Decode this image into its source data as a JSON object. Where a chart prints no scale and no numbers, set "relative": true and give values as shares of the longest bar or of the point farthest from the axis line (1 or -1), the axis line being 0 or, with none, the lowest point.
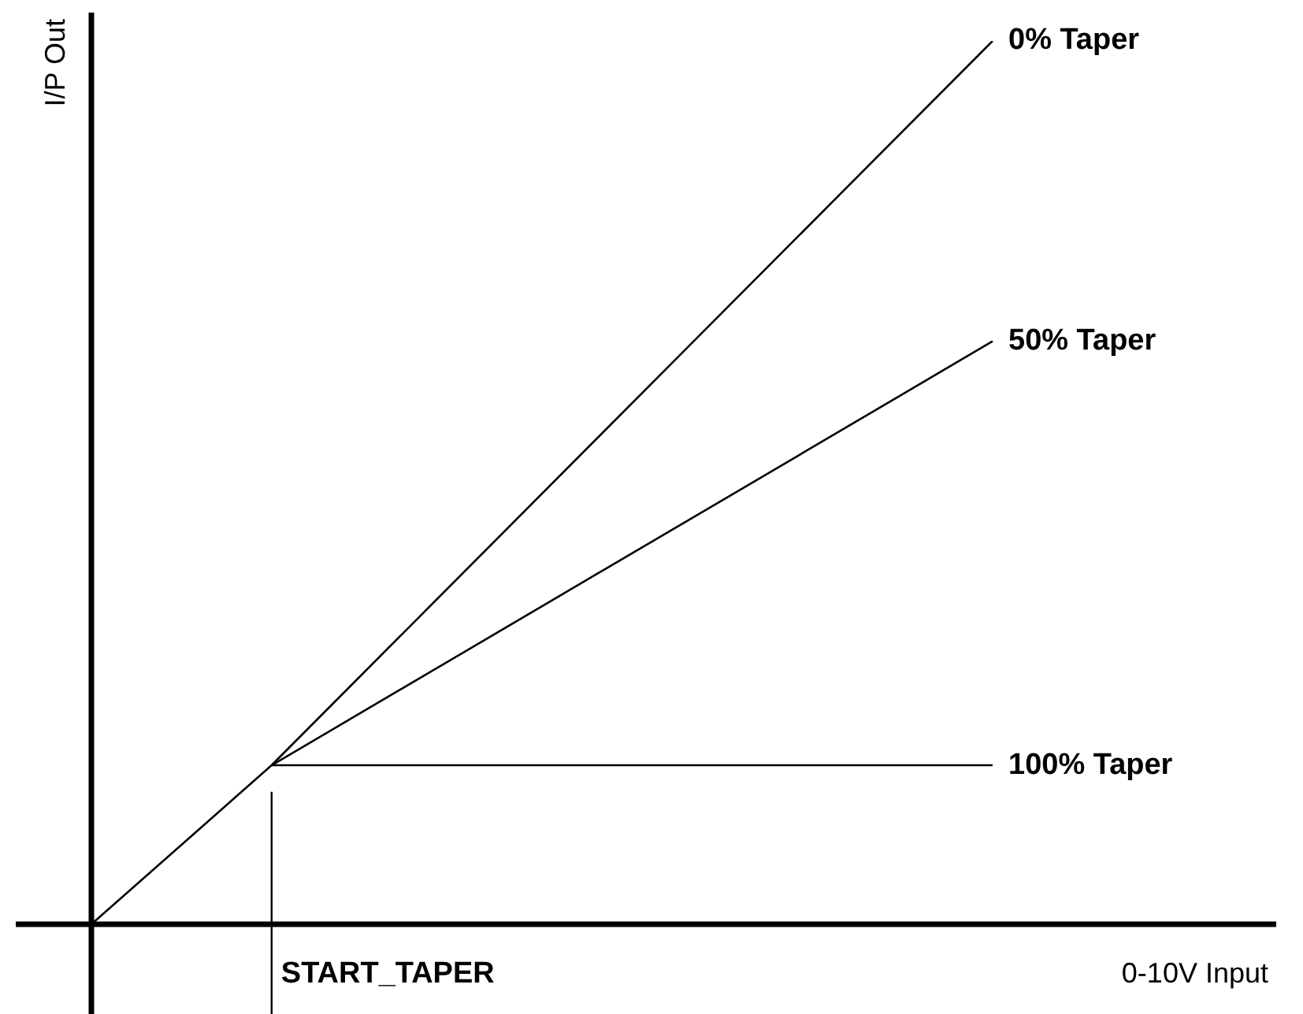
{
  "chart_data": {
    "type": "line",
    "relative": true,
    "xlabel": "0-10V Input",
    "ylabel": "I/P Out",
    "categories": [
      null,
      null,
      null,
      null,
      null,
      null
    ],
    "legend": false,
    "marker": "none",
    "line_style": "solid",
    "series": [
      {
        "name": "0% Taper",
        "color": "#000000",
        "values": [
          0,
          0.18,
          null,
          null,
          null,
          1
        ]
      },
      {
        "name": "50% Taper",
        "color": "#000000",
        "values": [
          null,
          0.18,
          null,
          null,
          null,
          0.66
        ]
      },
      {
        "name": "100% Taper",
        "color": "#000000",
        "values": [
          null,
          0.18,
          null,
          null,
          null,
          0.18
        ]
      }
    ],
    "annotations": [
      "START_TAPER"
    ]
  }
}
